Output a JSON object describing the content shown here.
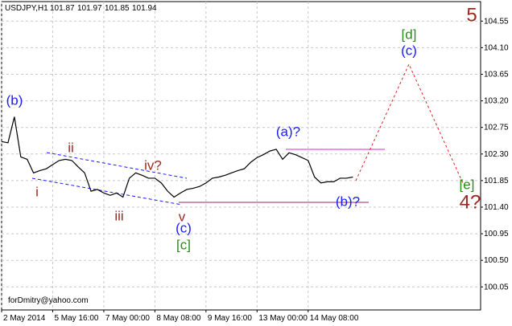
{
  "header": {
    "symbol": "USDJPY,H1",
    "ohlc": [
      101.87,
      101.97,
      101.85,
      101.94
    ]
  },
  "footer": "forDmitry@yahoo.com",
  "chart_data": {
    "type": "line",
    "color": "#000000",
    "grid": true,
    "ylim": [
      99.66,
      104.88
    ],
    "yticks": [
      104.55,
      {
        "value": 104.1,
        "label": "104.10"
      },
      103.65,
      {
        "value": 103.2,
        "label": "103.20"
      },
      102.75,
      {
        "value": 102.3,
        "label": "102.30"
      },
      101.85,
      {
        "value": 101.4,
        "label": "101.40"
      },
      100.95,
      {
        "value": 100.5,
        "label": "100.50"
      },
      100.05
    ],
    "categories": [
      "2 May 2014",
      null,
      null,
      null,
      null,
      null,
      null,
      null,
      "5 May 16:00",
      null,
      null,
      null,
      null,
      null,
      null,
      null,
      "7 May 00:00",
      null,
      null,
      null,
      null,
      null,
      null,
      null,
      "8 May 08:00",
      null,
      null,
      null,
      null,
      null,
      null,
      null,
      "9 May 16:00",
      null,
      null,
      null,
      null,
      null,
      null,
      null,
      "13 May 00:00",
      null,
      null,
      null,
      null,
      null,
      null,
      null,
      "14 May 08:00",
      null,
      null,
      null,
      null,
      null,
      null,
      null,
      null,
      null,
      null,
      null,
      null,
      null,
      null,
      null,
      null,
      null,
      null,
      null,
      null,
      null,
      null,
      null,
      null,
      null,
      null
    ],
    "values": [
      102.51,
      102.49,
      102.93,
      102.25,
      102.21,
      101.98,
      102.02,
      102.05,
      102.12,
      102.19,
      102.21,
      102.19,
      102.08,
      101.98,
      101.67,
      101.7,
      101.64,
      101.6,
      101.64,
      101.57,
      101.89,
      101.98,
      101.94,
      101.89,
      101.89,
      101.81,
      101.67,
      101.57,
      101.64,
      101.7,
      101.72,
      101.75,
      101.81,
      101.89,
      101.91,
      101.94,
      101.98,
      102.02,
      102.05,
      102.16,
      102.24,
      102.29,
      102.35,
      102.38,
      102.21,
      102.32,
      102.29,
      102.24,
      102.19,
      101.91,
      101.81,
      101.83,
      101.83,
      101.89,
      101.89,
      101.91,
      null,
      null,
      null,
      null,
      null,
      null,
      null,
      null,
      null,
      null,
      null,
      null,
      null,
      null,
      null,
      null,
      null,
      null,
      null
    ],
    "annotations": [
      "(b)",
      "ii",
      "i",
      "iii",
      "iv?",
      "v",
      "(c)",
      "[c]",
      "(a)?",
      "(b)?",
      "[d]",
      "(c)",
      "[e]",
      "4?",
      "5"
    ]
  }
}
